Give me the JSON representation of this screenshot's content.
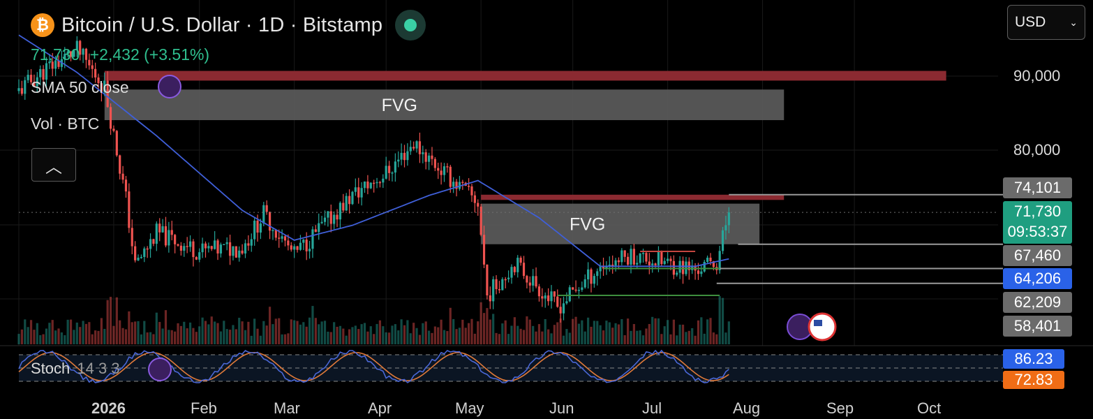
{
  "header": {
    "title": "Bitcoin / U.S. Dollar · 1D · Bitstamp",
    "logo_glyph": "₿",
    "price": "71,730",
    "change": "+2,432 (+3.51%)"
  },
  "indicators": {
    "sma": "SMA 50 close",
    "vol": "Vol · BTC",
    "stoch": "Stoch",
    "stoch_params": "14 3 3"
  },
  "currency": {
    "selected": "USD"
  },
  "y_axis": {
    "ticks": [
      "90,000",
      "80,000"
    ]
  },
  "price_badges": {
    "b74101": "74,101",
    "current_price": "71,730",
    "countdown": "09:53:37",
    "b67460": "67,460",
    "b64206": "64,206",
    "b62209": "62,209",
    "b58401": "58,401"
  },
  "stoch_badges": {
    "k": "86.23",
    "d": "72.83"
  },
  "x_axis": {
    "labels": [
      "2026",
      "Feb",
      "Mar",
      "Apr",
      "May",
      "Jun",
      "Jul",
      "Aug",
      "Sep",
      "Oct"
    ]
  },
  "zones": {
    "fvg_label": "FVG"
  },
  "colors": {
    "bull": "#26a69a",
    "bear": "#ef5350",
    "sma": "#3f5fd8",
    "resistance": "#8b2a31",
    "fvg": "#5d5d5d",
    "stoch_k": "#4a67d6",
    "stoch_d": "#e07a3a",
    "badge_grey": "#6b6b6b",
    "badge_teal": "#1f9e80",
    "badge_blue": "#2a62e8",
    "badge_orange": "#f06d16"
  },
  "chart_data": {
    "type": "candlestick",
    "symbol": "BTCUSD",
    "timeframe": "1D",
    "x_range": [
      "2026-01-01",
      "2026-10-31"
    ],
    "y_range": [
      55000,
      96000
    ],
    "y_ticks": [
      90000,
      80000
    ],
    "close_anchors": [
      {
        "date": "2026-01-01",
        "close": 88000
      },
      {
        "date": "2026-01-10",
        "close": 91000
      },
      {
        "date": "2026-01-20",
        "close": 93500
      },
      {
        "date": "2026-01-29",
        "close": 88500
      },
      {
        "date": "2026-02-05",
        "close": 73500
      },
      {
        "date": "2026-02-08",
        "close": 64500
      },
      {
        "date": "2026-02-15",
        "close": 69000
      },
      {
        "date": "2026-03-01",
        "close": 66500
      },
      {
        "date": "2026-03-15",
        "close": 67000
      },
      {
        "date": "2026-03-22",
        "close": 71500
      },
      {
        "date": "2026-04-01",
        "close": 66000
      },
      {
        "date": "2026-04-20",
        "close": 74000
      },
      {
        "date": "2026-05-01",
        "close": 77000
      },
      {
        "date": "2026-05-10",
        "close": 81000
      },
      {
        "date": "2026-05-20",
        "close": 77000
      },
      {
        "date": "2026-05-31",
        "close": 73000
      },
      {
        "date": "2026-06-03",
        "close": 60500
      },
      {
        "date": "2026-06-12",
        "close": 65000
      },
      {
        "date": "2026-06-26",
        "close": 59000
      },
      {
        "date": "2026-07-10",
        "close": 64500
      },
      {
        "date": "2026-07-20",
        "close": 66000
      },
      {
        "date": "2026-08-10",
        "close": 64000
      },
      {
        "date": "2026-08-17",
        "close": 65000
      },
      {
        "date": "2026-08-21",
        "close": 71730
      }
    ],
    "sma50_anchors": [
      {
        "date": "2026-01-01",
        "value": 95500
      },
      {
        "date": "2026-01-20",
        "value": 90500
      },
      {
        "date": "2026-02-15",
        "value": 82000
      },
      {
        "date": "2026-03-15",
        "value": 72000
      },
      {
        "date": "2026-04-01",
        "value": 68000
      },
      {
        "date": "2026-04-20",
        "value": 70000
      },
      {
        "date": "2026-05-15",
        "value": 74000
      },
      {
        "date": "2026-05-31",
        "value": 76000
      },
      {
        "date": "2026-06-20",
        "value": 71000
      },
      {
        "date": "2026-07-10",
        "value": 64500
      },
      {
        "date": "2026-08-10",
        "value": 64500
      },
      {
        "date": "2026-08-21",
        "value": 65500
      }
    ],
    "zones": [
      {
        "type": "resistance",
        "from": "2026-01-29",
        "to": "2026-10-31",
        "low": 89400,
        "high": 90700
      },
      {
        "type": "FVG",
        "from": "2026-01-29",
        "to": "2026-09-08",
        "low": 84100,
        "high": 88200
      },
      {
        "type": "resistance",
        "from": "2026-06-01",
        "to": "2026-09-08",
        "low": 73400,
        "high": 74101
      },
      {
        "type": "FVG",
        "from": "2026-06-01",
        "to": "2026-08-31",
        "low": 67460,
        "high": 72900
      }
    ],
    "levels": [
      74101,
      67460,
      64206,
      62209,
      58401
    ],
    "last_price": 71730,
    "stochastic": {
      "period": [
        14,
        3,
        3
      ],
      "k": 86.23,
      "d": 72.83
    }
  }
}
